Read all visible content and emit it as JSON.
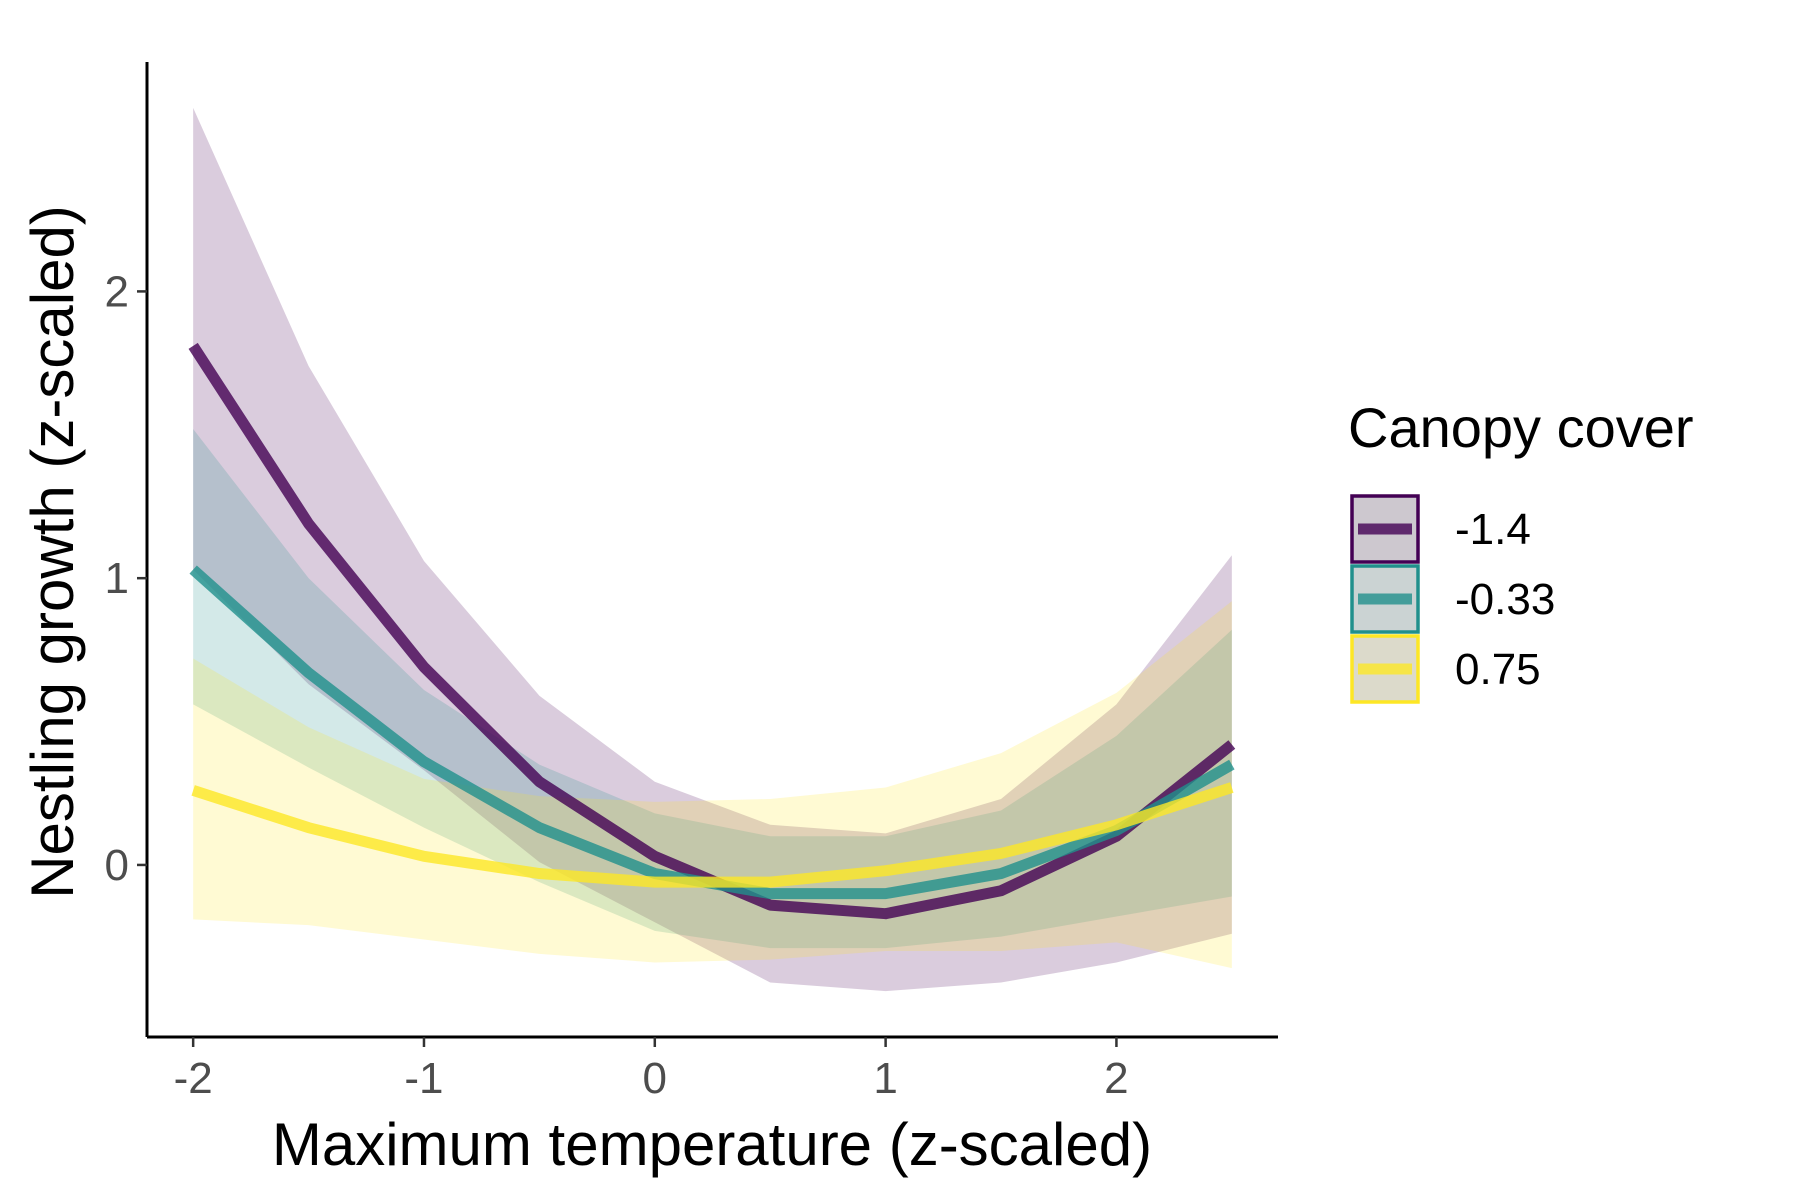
{
  "chart_data": {
    "type": "line",
    "title": "",
    "xlabel": "Maximum temperature (z-scaled)",
    "ylabel": "Nestling growth (z-scaled)",
    "xlim": [
      -2.2,
      2.7
    ],
    "ylim": [
      -0.6,
      2.8
    ],
    "x_ticks": [
      -2,
      -1,
      0,
      1,
      2
    ],
    "x_tick_labels": [
      "-2",
      "-1",
      "0",
      "1",
      "2"
    ],
    "y_ticks": [
      0,
      1,
      2
    ],
    "y_tick_labels": [
      "0",
      "1",
      "2"
    ],
    "grid": false,
    "legend": {
      "title": "Canopy cover",
      "position": "right"
    },
    "x": [
      -2,
      -1.5,
      -1,
      -0.5,
      0,
      0.5,
      1,
      1.5,
      2,
      2.5
    ],
    "series": [
      {
        "name": "-1.4",
        "line_color": "#440154",
        "fill_color": "#440154",
        "values": [
          1.81,
          1.19,
          0.69,
          0.29,
          0.03,
          -0.14,
          -0.17,
          -0.09,
          0.1,
          0.42
        ],
        "lower": [
          1.03,
          0.63,
          0.33,
          0.01,
          -0.2,
          -0.41,
          -0.44,
          -0.41,
          -0.34,
          -0.24
        ],
        "upper": [
          2.64,
          1.74,
          1.06,
          0.59,
          0.29,
          0.14,
          0.11,
          0.23,
          0.56,
          1.08
        ]
      },
      {
        "name": "-0.33",
        "line_color": "#21908C",
        "fill_color": "#21908C",
        "values": [
          1.03,
          0.67,
          0.36,
          0.13,
          -0.03,
          -0.1,
          -0.1,
          -0.03,
          0.12,
          0.35
        ],
        "lower": [
          0.56,
          0.34,
          0.13,
          -0.06,
          -0.23,
          -0.29,
          -0.29,
          -0.25,
          -0.18,
          -0.11
        ],
        "upper": [
          1.52,
          1.0,
          0.61,
          0.35,
          0.18,
          0.1,
          0.1,
          0.19,
          0.45,
          0.82
        ]
      },
      {
        "name": "0.75",
        "line_color": "#FDE725",
        "fill_color": "#FDE725",
        "values": [
          0.26,
          0.13,
          0.03,
          -0.03,
          -0.06,
          -0.06,
          -0.02,
          0.04,
          0.14,
          0.27
        ],
        "lower": [
          -0.19,
          -0.21,
          -0.26,
          -0.31,
          -0.34,
          -0.33,
          -0.3,
          -0.3,
          -0.27,
          -0.36
        ],
        "upper": [
          0.72,
          0.48,
          0.3,
          0.24,
          0.22,
          0.23,
          0.27,
          0.39,
          0.6,
          0.92
        ]
      }
    ]
  }
}
